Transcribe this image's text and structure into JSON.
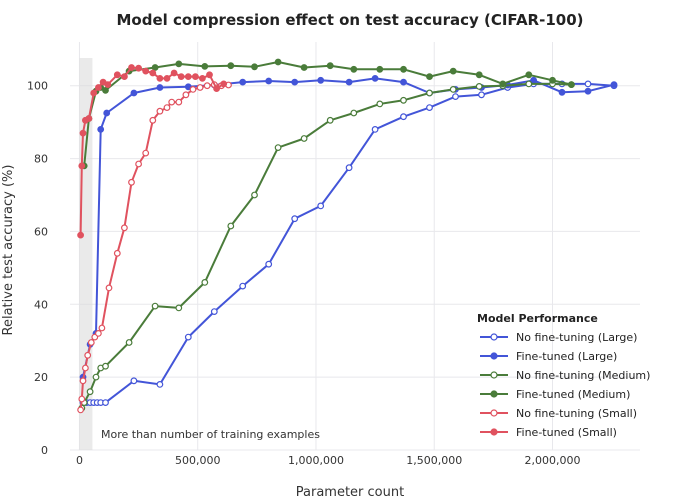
{
  "chart_data": {
    "type": "line",
    "title": "Model compression effect on test accuracy (CIFAR-100)",
    "xlabel": "Parameter count",
    "ylabel": "Relative test accuracy (%)",
    "xlim": [
      -40000,
      2370000
    ],
    "ylim": [
      0,
      112
    ],
    "xticks": [
      0,
      500000,
      1000000,
      1500000,
      2000000
    ],
    "xtick_labels": [
      "0",
      "500,000",
      "1,000,000",
      "1,500,000",
      "2,000,000"
    ],
    "yticks": [
      0,
      20,
      40,
      60,
      80,
      100
    ],
    "grid": true,
    "shaded_region": {
      "x": [
        0,
        55000
      ],
      "label": "More than number of training examples"
    },
    "legend": {
      "title": "Model Performance",
      "placement": "bottom-right"
    },
    "series": [
      {
        "name": "No fine-tuning (Large)",
        "color": "#4355d8",
        "filled": false,
        "x": [
          15000,
          30000,
          45000,
          60000,
          75000,
          90000,
          110000,
          230000,
          340000,
          460000,
          570000,
          690000,
          800000,
          910000,
          1020000,
          1140000,
          1250000,
          1370000,
          1480000,
          1590000,
          1700000,
          1810000,
          1920000,
          2040000,
          2150000,
          2260000
        ],
        "y": [
          13,
          13,
          13,
          13,
          13,
          13,
          13,
          19,
          18,
          31,
          38,
          45,
          51,
          63.5,
          67,
          77.5,
          88,
          91.5,
          94,
          97,
          97.5,
          99.5,
          100.5,
          100.5,
          100.5,
          100
        ]
      },
      {
        "name": "Fine-tuned (Large)",
        "color": "#4355d8",
        "filled": true,
        "x": [
          15000,
          45000,
          70000,
          90000,
          115000,
          230000,
          340000,
          460000,
          570000,
          690000,
          800000,
          910000,
          1020000,
          1140000,
          1250000,
          1370000,
          1480000,
          1590000,
          1700000,
          1810000,
          1920000,
          2040000,
          2150000,
          2260000
        ],
        "y": [
          20,
          29,
          32,
          88,
          92.5,
          98,
          99.5,
          99.7,
          100.2,
          101,
          101.3,
          101,
          101.5,
          101,
          102,
          101,
          98,
          99,
          99.5,
          100.2,
          101.5,
          98.2,
          98.5,
          100.3
        ]
      },
      {
        "name": "No fine-tuning (Medium)",
        "color": "#4a7c3a",
        "filled": false,
        "x": [
          10000,
          20000,
          45000,
          70000,
          90000,
          110000,
          210000,
          320000,
          420000,
          530000,
          640000,
          740000,
          840000,
          950000,
          1060000,
          1160000,
          1270000,
          1370000,
          1480000,
          1580000,
          1690000,
          1790000,
          1900000,
          2000000,
          2080000
        ],
        "y": [
          11.5,
          13,
          16,
          20,
          22.5,
          23,
          29.5,
          39.5,
          39,
          46,
          61.5,
          70,
          83,
          85.5,
          90.5,
          92.5,
          95,
          96,
          98,
          99,
          99.8,
          100,
          100.5,
          100.5,
          100.3
        ]
      },
      {
        "name": "Fine-tuned (Medium)",
        "color": "#4a7c3a",
        "filled": true,
        "x": [
          20000,
          40000,
          70000,
          90000,
          110000,
          210000,
          320000,
          420000,
          530000,
          640000,
          740000,
          840000,
          950000,
          1060000,
          1160000,
          1270000,
          1370000,
          1480000,
          1580000,
          1690000,
          1790000,
          1900000,
          2000000,
          2080000
        ],
        "y": [
          78,
          91,
          98.5,
          99.5,
          98.7,
          104,
          105,
          106,
          105.3,
          105.5,
          105.2,
          106.5,
          105,
          105.5,
          104.5,
          104.5,
          104.5,
          102.5,
          104,
          103,
          100.5,
          103,
          101.5,
          100.3
        ]
      },
      {
        "name": "No fine-tuning (Small)",
        "color": "#e0525f",
        "filled": false,
        "x": [
          5000,
          10000,
          15000,
          25000,
          35000,
          50000,
          65000,
          80000,
          95000,
          125000,
          160000,
          190000,
          220000,
          250000,
          280000,
          310000,
          340000,
          370000,
          390000,
          420000,
          450000,
          480000,
          510000,
          540000,
          570000,
          600000,
          630000
        ],
        "y": [
          11,
          14,
          19,
          22.5,
          26,
          29.5,
          31,
          32,
          33.5,
          44.5,
          54,
          61,
          73.5,
          78.5,
          81.5,
          90.5,
          93,
          94,
          95.5,
          95.5,
          97.5,
          99,
          99.5,
          100,
          100.3,
          100,
          100.2
        ]
      },
      {
        "name": "Fine-tuned (Small)",
        "color": "#e0525f",
        "filled": true,
        "x": [
          5000,
          10000,
          15000,
          25000,
          40000,
          60000,
          80000,
          100000,
          120000,
          160000,
          190000,
          220000,
          250000,
          280000,
          310000,
          340000,
          370000,
          400000,
          430000,
          460000,
          490000,
          520000,
          550000,
          580000,
          610000
        ],
        "y": [
          59,
          78,
          87,
          90.5,
          91,
          98,
          99.5,
          101,
          100.3,
          103,
          102.5,
          105,
          104.8,
          104,
          103.5,
          102,
          102,
          103.5,
          102.5,
          102.5,
          102.5,
          102,
          103,
          99.2,
          100.5
        ]
      }
    ]
  }
}
